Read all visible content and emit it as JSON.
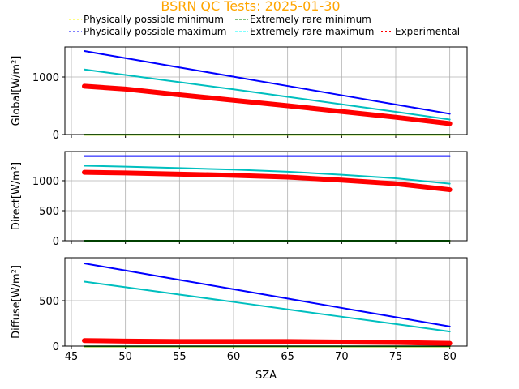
{
  "chart_data": {
    "type": "line",
    "title": "BSRN QC Tests: 2025-01-30",
    "title_color": "#ffa500",
    "xlabel": "SZA",
    "xlim": [
      44.4,
      81.6
    ],
    "xticks": [
      45,
      50,
      55,
      60,
      65,
      70,
      75,
      80
    ],
    "legend": {
      "placement": "top",
      "entries": [
        {
          "label": "Physically possible minimum",
          "color": "#ffff00",
          "style": "dashed"
        },
        {
          "label": "Extremely rare minimum",
          "color": "#008000",
          "style": "dashed"
        },
        {
          "label": "Physically possible maximum",
          "color": "#0000ff",
          "style": "dashed"
        },
        {
          "label": "Extremely rare maximum",
          "color": "#00ffff",
          "style": "dashed"
        },
        {
          "label": "Experimental",
          "color": "#ff0000",
          "style": "dotted"
        }
      ]
    },
    "x": [
      46.2,
      50,
      55,
      60,
      65,
      70,
      75,
      80
    ],
    "panels": [
      {
        "ylabel": "Global[W/m²]",
        "ylim": [
          0,
          1521
        ],
        "yticks": [
          0,
          1000
        ],
        "series": [
          {
            "name": "Physically possible minimum",
            "color": "#ffff00",
            "values": [
              -4,
              -4,
              -4,
              -4,
              -4,
              -4,
              -4,
              -4
            ]
          },
          {
            "name": "Extremely rare minimum",
            "color": "#008000",
            "values": [
              -2,
              -2,
              -2,
              -2,
              -2,
              -2,
              -2,
              -2
            ]
          },
          {
            "name": "Physically possible maximum",
            "color": "#0000ff",
            "values": [
              1450,
              1327,
              1166,
              1005,
              844,
              682,
              521,
              360
            ]
          },
          {
            "name": "Extremely rare maximum",
            "color": "#00bfbf",
            "values": [
              1130,
              1035,
              910,
              785,
              655,
              525,
              395,
              260
            ]
          },
          {
            "name": "Experimental",
            "color": "#ff0000",
            "values": [
              840,
              790,
              690,
              595,
              500,
              400,
              300,
              190
            ]
          }
        ]
      },
      {
        "ylabel": "Direct[W/m²]",
        "ylim": [
          0,
          1486
        ],
        "yticks": [
          0,
          500,
          1000
        ],
        "series": [
          {
            "name": "Physically possible minimum",
            "color": "#ffff00",
            "values": [
              0,
              0,
              0,
              0,
              0,
              0,
              0,
              0
            ]
          },
          {
            "name": "Extremely rare minimum",
            "color": "#008000",
            "values": [
              0,
              0,
              0,
              0,
              0,
              0,
              0,
              0
            ]
          },
          {
            "name": "Physically possible maximum",
            "color": "#0000ff",
            "values": [
              1410,
              1410,
              1410,
              1410,
              1410,
              1410,
              1410,
              1410
            ]
          },
          {
            "name": "Extremely rare maximum",
            "color": "#00bfbf",
            "values": [
              1250,
              1235,
              1210,
              1185,
              1150,
              1100,
              1040,
              950
            ]
          },
          {
            "name": "Experimental",
            "color": "#ff0000",
            "values": [
              1140,
              1130,
              1110,
              1090,
              1060,
              1010,
              950,
              850
            ]
          }
        ]
      },
      {
        "ylabel": "Diffuse[W/m²]",
        "ylim": [
          0,
          973
        ],
        "yticks": [
          0,
          500
        ],
        "series": [
          {
            "name": "Physically possible minimum",
            "color": "#ffff00",
            "values": [
              -4,
              -4,
              -4,
              -4,
              -4,
              -4,
              -4,
              -4
            ]
          },
          {
            "name": "Extremely rare minimum",
            "color": "#008000",
            "values": [
              -2,
              -2,
              -2,
              -2,
              -2,
              -2,
              -2,
              -2
            ]
          },
          {
            "name": "Physically possible maximum",
            "color": "#0000ff",
            "values": [
              910,
              832,
              729,
              626,
              523,
              420,
              318,
              215
            ]
          },
          {
            "name": "Extremely rare maximum",
            "color": "#00bfbf",
            "values": [
              710,
              648,
              567,
              486,
              404,
              323,
              242,
              160
            ]
          },
          {
            "name": "Experimental",
            "color": "#ff0000",
            "values": [
              60,
              55,
              50,
              50,
              50,
              45,
              40,
              30
            ]
          }
        ]
      }
    ]
  }
}
